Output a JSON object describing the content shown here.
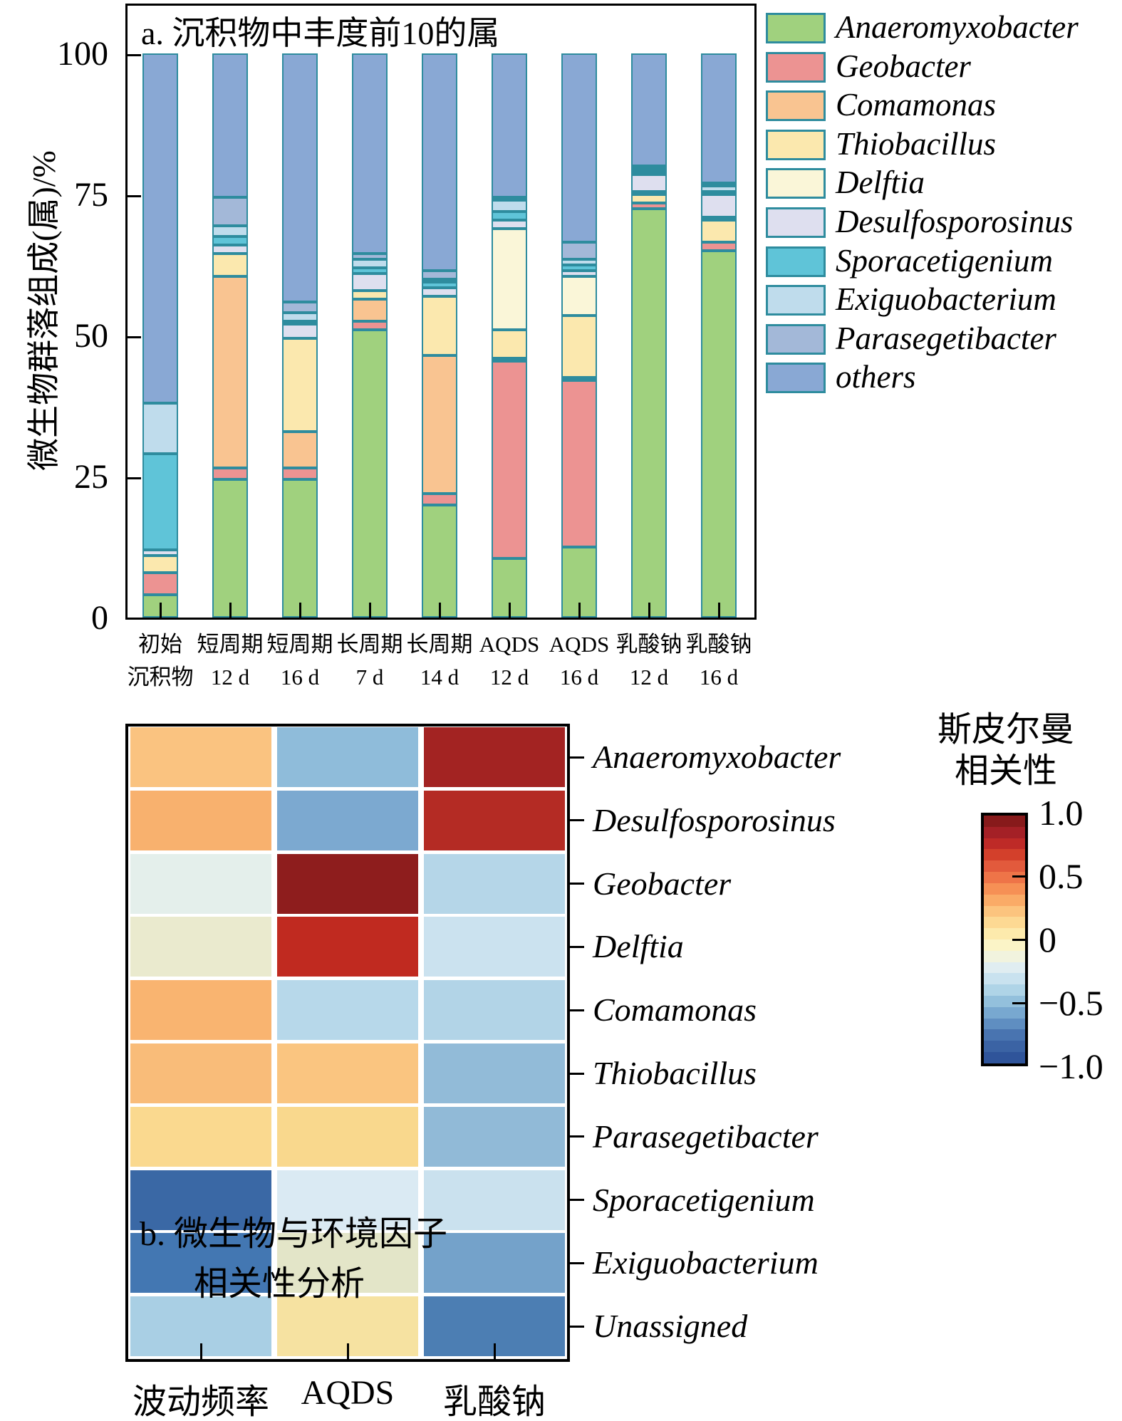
{
  "panel_a": {
    "title": "a. 沉积物中丰度前10的属",
    "y_axis_title": "微生物群落组成(属)/%",
    "y_tick_labels": [
      "100",
      "75",
      "50",
      "25",
      "0"
    ],
    "bar_border_color": "#2E8C9E",
    "frame_color": "#000000"
  },
  "panel_b": {
    "label_line1": "b. 微生物与环境因子",
    "label_line2": "相关性分析",
    "colorbar": {
      "title_line1": "斯皮尔曼",
      "title_line2": "相关性",
      "tick_labels": [
        "1.0",
        "0.5",
        "0",
        "−0.5",
        "−1.0"
      ],
      "tick_values": [
        1.0,
        0.5,
        0,
        -0.5,
        -1.0
      ],
      "band_colors": [
        "#871A1B",
        "#A42026",
        "#BE2A27",
        "#D3402B",
        "#E25A3C",
        "#EE7448",
        "#F69055",
        "#FAAB67",
        "#FCC47E",
        "#FDD993",
        "#FDEAAC",
        "#FBF4C7",
        "#F1F3DE",
        "#E0EDF1",
        "#C9E2EF",
        "#AFD4E7",
        "#93C0DC",
        "#78A8D0",
        "#5F8EC1",
        "#4974B0",
        "#3B63A4",
        "#2F549A"
      ]
    }
  },
  "chart_data": [
    {
      "type": "bar",
      "stacked": true,
      "title": "a. 沉积物中丰度前10的属",
      "ylabel": "微生物群落组成(属)/%",
      "ylim": [
        0,
        100
      ],
      "y_ticks": [
        0,
        25,
        50,
        75,
        100
      ],
      "categories": [
        [
          "初始",
          "沉积物"
        ],
        [
          "短周期",
          "12 d"
        ],
        [
          "短周期",
          "16 d"
        ],
        [
          "长周期",
          "7 d"
        ],
        [
          "长周期",
          "14 d"
        ],
        [
          "AQDS",
          "12 d"
        ],
        [
          "AQDS",
          "16 d"
        ],
        [
          "乳酸钠",
          "12 d"
        ],
        [
          "乳酸钠",
          "16 d"
        ]
      ],
      "series": [
        {
          "name": "Anaeromyxobacter",
          "color": "#A0D17E",
          "values": [
            4,
            24.5,
            24.5,
            51,
            20,
            10.5,
            12.5,
            72.5,
            65
          ]
        },
        {
          "name": "Geobacter",
          "color": "#EC9392",
          "values": [
            4,
            2,
            2,
            1.5,
            2,
            35,
            29.5,
            1,
            1.5
          ]
        },
        {
          "name": "Comamonas",
          "color": "#F9C491",
          "values": [
            0,
            34,
            6.5,
            4,
            24.5,
            0.5,
            0.5,
            0,
            0
          ]
        },
        {
          "name": "Thiobacillus",
          "color": "#FBE8AE",
          "values": [
            3,
            4,
            16.5,
            1.5,
            10.5,
            5,
            11,
            1.5,
            4
          ]
        },
        {
          "name": "Delftia",
          "color": "#FAF6D8",
          "values": [
            0,
            0,
            0,
            0,
            0,
            18,
            7,
            0.5,
            0.5
          ]
        },
        {
          "name": "Desulfosporosinus",
          "color": "#DEDFEF",
          "values": [
            1,
            1.5,
            2.5,
            3,
            1.5,
            1.5,
            1,
            3,
            4
          ]
        },
        {
          "name": "Sporacetigenium",
          "color": "#5FC4D8",
          "values": [
            17,
            1.5,
            0.5,
            1,
            1,
            1.5,
            1,
            0.5,
            0.5
          ]
        },
        {
          "name": "Exiguobacterium",
          "color": "#BFDCEC",
          "values": [
            9,
            2,
            1.5,
            1.5,
            0.5,
            2,
            1,
            0.5,
            1
          ]
        },
        {
          "name": "Parasegetibacter",
          "color": "#A3B8D8",
          "values": [
            0,
            5,
            2,
            1,
            1.5,
            0.5,
            3,
            0.5,
            0.5
          ]
        },
        {
          "name": "others",
          "color": "#89A8D4",
          "values": [
            62,
            25.5,
            44,
            35.5,
            38.5,
            25.5,
            33.5,
            20,
            23
          ]
        }
      ]
    },
    {
      "type": "heatmap",
      "title": "b. 微生物与环境因子 相关性分析",
      "legend_title": "斯皮尔曼 相关性",
      "colorbar_range": [
        -1,
        1
      ],
      "columns": [
        "波动频率",
        "AQDS",
        "乳酸钠"
      ],
      "rows": [
        "Anaeromyxobacter",
        "Desulfosporosinus",
        "Geobacter",
        "Delftia",
        "Comamonas",
        "Thiobacillus",
        "Parasegetibacter",
        "Sporacetigenium",
        "Exiguobacterium",
        "Unassigned"
      ],
      "values": [
        [
          0.35,
          -0.35,
          0.95
        ],
        [
          0.45,
          -0.5,
          0.9
        ],
        [
          -0.05,
          1.0,
          -0.3
        ],
        [
          0.05,
          0.85,
          -0.25
        ],
        [
          0.45,
          -0.25,
          -0.3
        ],
        [
          0.4,
          0.35,
          -0.35
        ],
        [
          0.25,
          0.25,
          -0.35
        ],
        [
          -0.75,
          -0.1,
          -0.2
        ],
        [
          -0.6,
          0.05,
          -0.45
        ],
        [
          -0.3,
          0.2,
          -0.7
        ]
      ],
      "cell_colors": [
        [
          "#FAC380",
          "#8FBCDA",
          "#A32322"
        ],
        [
          "#F8B16E",
          "#7CA9D0",
          "#B42B24"
        ],
        [
          "#E4EFEB",
          "#8E1D1D",
          "#B5D6E8"
        ],
        [
          "#EAEACE",
          "#C02A20",
          "#CBE2EF"
        ],
        [
          "#F9B470",
          "#B7D8EA",
          "#B2D4E7"
        ],
        [
          "#F9BC79",
          "#FAC580",
          "#92BBD8"
        ],
        [
          "#FAD98F",
          "#F9D88D",
          "#91BAD7"
        ],
        [
          "#3A68A5",
          "#DAEAF3",
          "#CAE1EE"
        ],
        [
          "#4377B2",
          "#E3E5C8",
          "#74A2CA"
        ],
        [
          "#A9CFE4",
          "#F6E2A1",
          "#4C7EB3"
        ]
      ]
    }
  ]
}
